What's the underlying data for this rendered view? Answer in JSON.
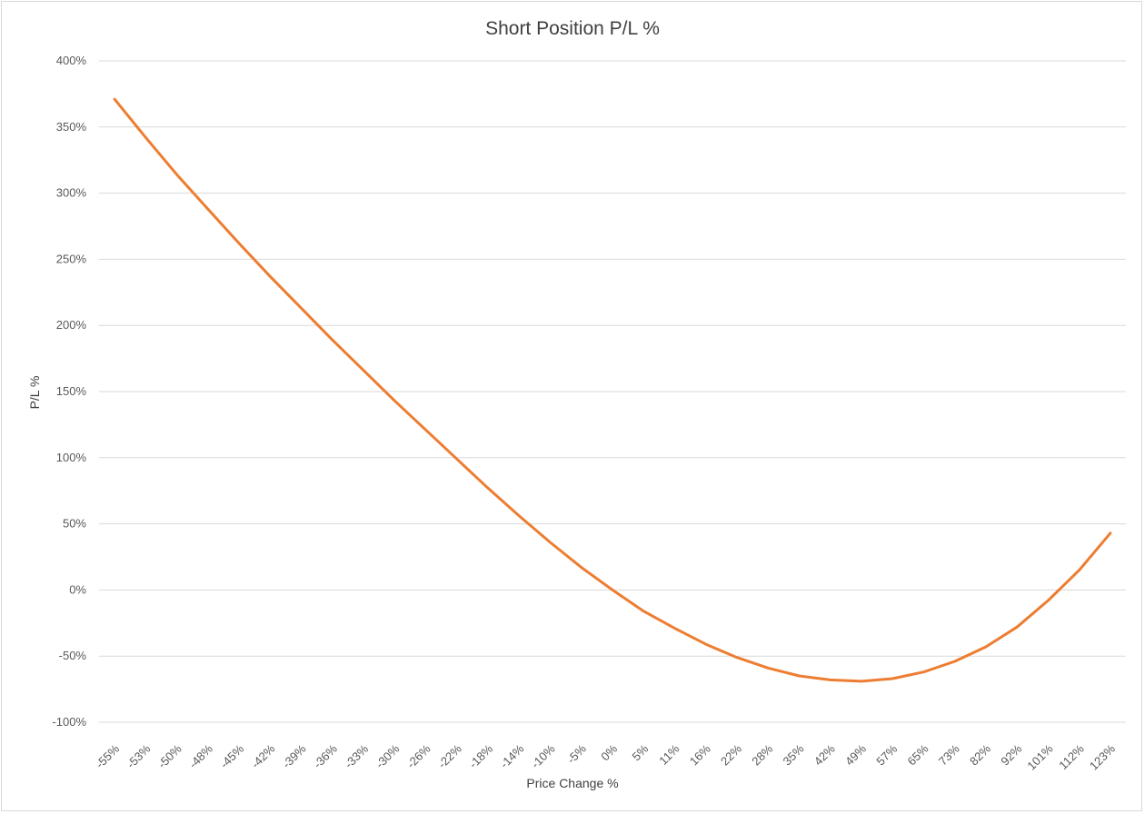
{
  "chart_data": {
    "type": "line",
    "title": "Short Position P/L %",
    "xlabel": "Price Change %",
    "ylabel": "P/L %",
    "ylim": [
      -100,
      400
    ],
    "yticks": [
      "-100%",
      "-50%",
      "0%",
      "50%",
      "100%",
      "150%",
      "200%",
      "250%",
      "300%",
      "350%",
      "400%"
    ],
    "yticks_values": [
      -100,
      -50,
      0,
      50,
      100,
      150,
      200,
      250,
      300,
      350,
      400
    ],
    "grid": true,
    "line_color": "#ED7D31",
    "categories": [
      "-55%",
      "-53%",
      "-50%",
      "-48%",
      "-45%",
      "-42%",
      "-39%",
      "-36%",
      "-33%",
      "-30%",
      "-26%",
      "-22%",
      "-18%",
      "-14%",
      "-10%",
      "-5%",
      "0%",
      "5%",
      "11%",
      "16%",
      "22%",
      "28%",
      "35%",
      "42%",
      "49%",
      "57%",
      "65%",
      "73%",
      "82%",
      "92%",
      "101%",
      "112%",
      "123%"
    ],
    "series": [
      {
        "values": [
          371,
          342,
          314,
          288,
          262,
          237,
          213,
          189,
          166,
          143,
          121,
          99,
          77,
          56,
          36,
          17,
          0,
          -16,
          -29,
          -41,
          -51,
          -59,
          -65,
          -68,
          -69,
          -67,
          -62,
          -54,
          -43,
          -28,
          -8,
          15,
          43
        ]
      }
    ]
  }
}
